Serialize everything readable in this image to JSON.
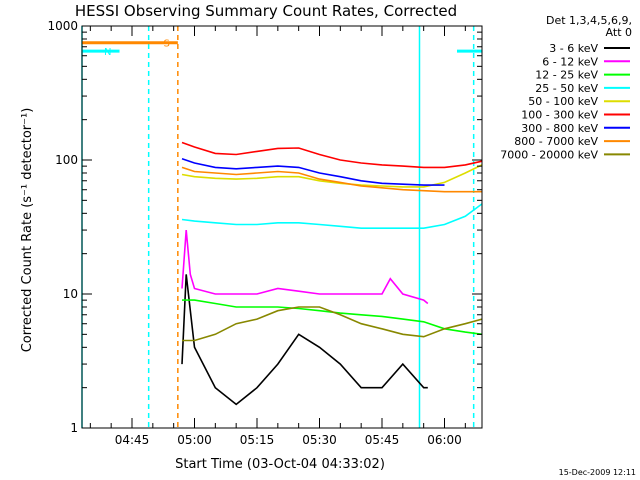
{
  "chart_data": {
    "type": "line",
    "title": "HESSI Observing Summary Count Rates, Corrected",
    "xlabel": "Start Time (03-Oct-04 04:33:02)",
    "ylabel": "Corrected Count Rate (s⁻¹ detector⁻¹)",
    "y_scale": "log",
    "ylim": [
      1,
      1000
    ],
    "xlim": [
      "04:33",
      "06:09"
    ],
    "x_tick_labels": [
      "04:45",
      "05:00",
      "05:15",
      "05:30",
      "05:45",
      "06:00"
    ],
    "y_tick_labels": [
      "1",
      "10",
      "100",
      "1000"
    ],
    "legend_header": [
      "Det 1,3,4,5,6,9,",
      "Att 0"
    ],
    "legend_placement": "right-outside",
    "footer": "15-Dec-2009 12:11",
    "series": [
      {
        "name": "3 - 6 keV",
        "color": "#000000",
        "x": [
          "04:57",
          "04:58",
          "05:00",
          "05:05",
          "05:10",
          "05:15",
          "05:20",
          "05:25",
          "05:30",
          "05:35",
          "05:40",
          "05:45",
          "05:50",
          "05:55",
          "05:56"
        ],
        "y": [
          3,
          14,
          4,
          2,
          1.5,
          2,
          3,
          5,
          4,
          3,
          2,
          2,
          3,
          2,
          2
        ]
      },
      {
        "name": "6 - 12 keV",
        "color": "#ff00ff",
        "x": [
          "04:57",
          "04:58",
          "04:59",
          "05:00",
          "05:05",
          "05:10",
          "05:15",
          "05:20",
          "05:25",
          "05:30",
          "05:35",
          "05:40",
          "05:45",
          "05:47",
          "05:50",
          "05:55",
          "05:56"
        ],
        "y": [
          11,
          30,
          14,
          11,
          10,
          10,
          10,
          11,
          10.5,
          10,
          10,
          10,
          10,
          13,
          10,
          9,
          8.5
        ]
      },
      {
        "name": "12 - 25 keV",
        "color": "#00ff00",
        "x": [
          "04:57",
          "05:00",
          "05:05",
          "05:10",
          "05:15",
          "05:20",
          "05:25",
          "05:30",
          "05:35",
          "05:40",
          "05:45",
          "05:50",
          "05:55",
          "06:00",
          "06:05",
          "06:09"
        ],
        "y": [
          9,
          9,
          8.5,
          8,
          8,
          8,
          7.8,
          7.5,
          7.2,
          7,
          6.8,
          6.5,
          6.2,
          5.5,
          5.2,
          5
        ]
      },
      {
        "name": "25 - 50 keV",
        "color": "#00ffff",
        "x": [
          "04:57",
          "05:00",
          "05:05",
          "05:10",
          "05:15",
          "05:20",
          "05:25",
          "05:30",
          "05:35",
          "05:40",
          "05:45",
          "05:50",
          "05:55",
          "06:00",
          "06:05",
          "06:09"
        ],
        "y": [
          36,
          35,
          34,
          33,
          33,
          34,
          34,
          33,
          32,
          31,
          31,
          31,
          31,
          33,
          38,
          47
        ]
      },
      {
        "name": "50 - 100 keV",
        "color": "#dddd00",
        "x": [
          "04:57",
          "05:00",
          "05:05",
          "05:10",
          "05:15",
          "05:20",
          "05:25",
          "05:30",
          "05:35",
          "05:40",
          "05:45",
          "05:50",
          "05:55",
          "06:00",
          "06:05",
          "06:09"
        ],
        "y": [
          78,
          75,
          73,
          72,
          73,
          75,
          75,
          70,
          67,
          65,
          64,
          63,
          63,
          68,
          80,
          92
        ]
      },
      {
        "name": "100 - 300 keV",
        "color": "#ff0000",
        "x": [
          "04:57",
          "05:00",
          "05:05",
          "05:10",
          "05:15",
          "05:20",
          "05:25",
          "05:30",
          "05:35",
          "05:40",
          "05:45",
          "05:50",
          "05:55",
          "06:00",
          "06:05",
          "06:09"
        ],
        "y": [
          135,
          125,
          112,
          110,
          116,
          122,
          123,
          110,
          100,
          95,
          92,
          90,
          88,
          88,
          92,
          98
        ]
      },
      {
        "name": "300 - 800 keV",
        "color": "#0000ff",
        "x": [
          "04:57",
          "05:00",
          "05:05",
          "05:10",
          "05:15",
          "05:20",
          "05:25",
          "05:30",
          "05:35",
          "05:40",
          "05:45",
          "05:50",
          "05:55",
          "06:00"
        ],
        "y": [
          102,
          95,
          88,
          86,
          88,
          90,
          88,
          80,
          75,
          70,
          67,
          66,
          65,
          65
        ]
      },
      {
        "name": "800 - 7000 keV",
        "color": "#ff8800",
        "x": [
          "04:57",
          "05:00",
          "05:05",
          "05:10",
          "05:15",
          "05:20",
          "05:25",
          "05:30",
          "05:35",
          "05:40",
          "05:45",
          "05:50",
          "05:55",
          "06:00",
          "06:05",
          "06:09"
        ],
        "y": [
          88,
          82,
          80,
          78,
          80,
          82,
          80,
          72,
          68,
          64,
          62,
          60,
          59,
          58,
          58,
          58
        ]
      },
      {
        "name": "7000 - 20000 keV",
        "color": "#888800",
        "x": [
          "04:57",
          "05:00",
          "05:05",
          "05:10",
          "05:15",
          "05:20",
          "05:25",
          "05:30",
          "05:35",
          "05:40",
          "05:45",
          "05:50",
          "05:55",
          "06:00",
          "06:05",
          "06:09"
        ],
        "y": [
          4.5,
          4.5,
          5,
          6,
          6.5,
          7.5,
          8,
          8,
          7,
          6,
          5.5,
          5,
          4.8,
          5.5,
          6,
          6.5
        ]
      }
    ],
    "markers": [
      {
        "label": "S",
        "color": "#ff8800",
        "value": 750,
        "from": "04:33",
        "to": "04:56"
      },
      {
        "label": "N",
        "color": "#00ffff",
        "value": 650,
        "from": "04:33",
        "to": "04:42"
      },
      {
        "label": "",
        "color": "#00ffff",
        "value": 650,
        "from": "06:03",
        "to": "06:09"
      }
    ],
    "vlines": [
      {
        "at": "04:33",
        "color": "#00ffff",
        "style": "solid"
      },
      {
        "at": "04:49",
        "color": "#00ffff",
        "style": "dashed"
      },
      {
        "at": "04:56",
        "color": "#ff8800",
        "style": "dashed"
      },
      {
        "at": "05:54",
        "color": "#00ffff",
        "style": "solid"
      },
      {
        "at": "06:07",
        "color": "#00ffff",
        "style": "dashed"
      }
    ]
  }
}
